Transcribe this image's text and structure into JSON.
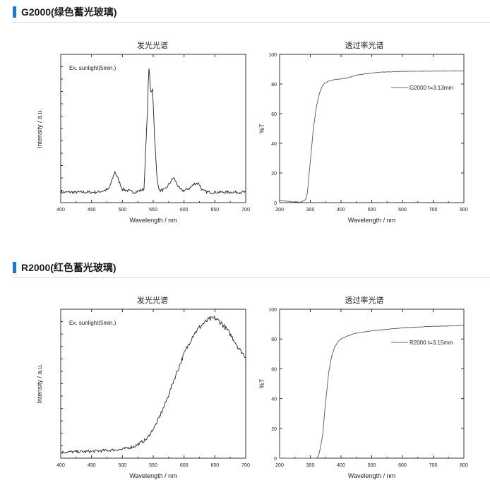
{
  "sections": [
    {
      "title": "G2000(绿色蓄光玻璃)"
    },
    {
      "title": "R2000(红色蓄光玻璃)"
    }
  ],
  "chart_data": [
    {
      "type": "line",
      "title": "发光光谱",
      "xlabel": "Wavelength / nm",
      "ylabel": "Intensity / a.u.",
      "annotation": "Ex. sunlight(5min.)",
      "xlim": [
        400,
        700
      ],
      "ylim": [
        0,
        1
      ],
      "xticks": [
        "400",
        "450",
        "500",
        "550",
        "600",
        "650",
        "700"
      ],
      "series": [
        {
          "x": [
            400,
            430,
            460,
            478,
            484,
            488,
            493,
            500,
            520,
            535,
            540,
            543,
            546,
            549,
            552,
            556,
            560,
            570,
            578,
            583,
            588,
            593,
            600,
            610,
            618,
            624,
            630,
            640,
            660,
            680,
            700
          ],
          "y": [
            0.07,
            0.07,
            0.07,
            0.09,
            0.16,
            0.21,
            0.16,
            0.09,
            0.07,
            0.09,
            0.55,
            0.92,
            0.73,
            0.78,
            0.46,
            0.17,
            0.08,
            0.09,
            0.14,
            0.17,
            0.13,
            0.09,
            0.08,
            0.1,
            0.13,
            0.13,
            0.08,
            0.07,
            0.07,
            0.07,
            0.07
          ]
        }
      ]
    },
    {
      "type": "line",
      "title": "透过率光谱",
      "xlabel": "Wavelength / nm",
      "ylabel": "%T",
      "legend": "G2000 t=3.13mm",
      "xlim": [
        200,
        800
      ],
      "ylim": [
        0,
        100
      ],
      "xticks": [
        "200",
        "300",
        "400",
        "500",
        "600",
        "700",
        "800"
      ],
      "yticks": [
        "0",
        "20",
        "40",
        "60",
        "80",
        "100"
      ],
      "series": [
        {
          "name": "G2000 t=3.13mm",
          "x": [
            200,
            240,
            270,
            285,
            290,
            300,
            310,
            320,
            330,
            340,
            350,
            360,
            380,
            400,
            420,
            450,
            500,
            550,
            600,
            700,
            800
          ],
          "y": [
            1.5,
            0.5,
            0.3,
            2,
            6,
            28,
            50,
            65,
            74,
            79,
            81,
            82,
            83,
            83.5,
            84,
            86,
            87.5,
            88.2,
            88.5,
            88.7,
            88.8
          ]
        }
      ]
    },
    {
      "type": "line",
      "title": "发光光谱",
      "xlabel": "Wavelength / nm",
      "ylabel": "Intensity / a.u.",
      "annotation": "Ex. sunlight(5min.)",
      "xlim": [
        400,
        700
      ],
      "ylim": [
        0,
        1
      ],
      "xticks": [
        "400",
        "450",
        "500",
        "550",
        "600",
        "650",
        "700"
      ],
      "series": [
        {
          "x": [
            400,
            450,
            500,
            520,
            540,
            555,
            570,
            585,
            600,
            615,
            630,
            640,
            650,
            660,
            670,
            680,
            690,
            700
          ],
          "y": [
            0.04,
            0.045,
            0.06,
            0.08,
            0.13,
            0.23,
            0.37,
            0.54,
            0.7,
            0.83,
            0.9,
            0.93,
            0.94,
            0.91,
            0.86,
            0.8,
            0.73,
            0.68
          ]
        }
      ]
    },
    {
      "type": "line",
      "title": "透过率光谱",
      "xlabel": "Wavelength / nm",
      "ylabel": "%T",
      "legend": "R2000 t=3.15mm",
      "xlim": [
        200,
        800
      ],
      "ylim": [
        0,
        100
      ],
      "xticks": [
        "200",
        "300",
        "400",
        "500",
        "600",
        "700",
        "800"
      ],
      "yticks": [
        "0",
        "20",
        "40",
        "60",
        "80",
        "100"
      ],
      "series": [
        {
          "name": "R2000 t=3.15mm",
          "x": [
            200,
            300,
            320,
            325,
            330,
            340,
            350,
            360,
            370,
            380,
            390,
            400,
            420,
            450,
            500,
            550,
            600,
            700,
            800
          ],
          "y": [
            0,
            0,
            0,
            1,
            4,
            15,
            38,
            58,
            69,
            75,
            78,
            80,
            82,
            84,
            85.5,
            86.5,
            87.5,
            88.5,
            89
          ]
        }
      ]
    }
  ]
}
